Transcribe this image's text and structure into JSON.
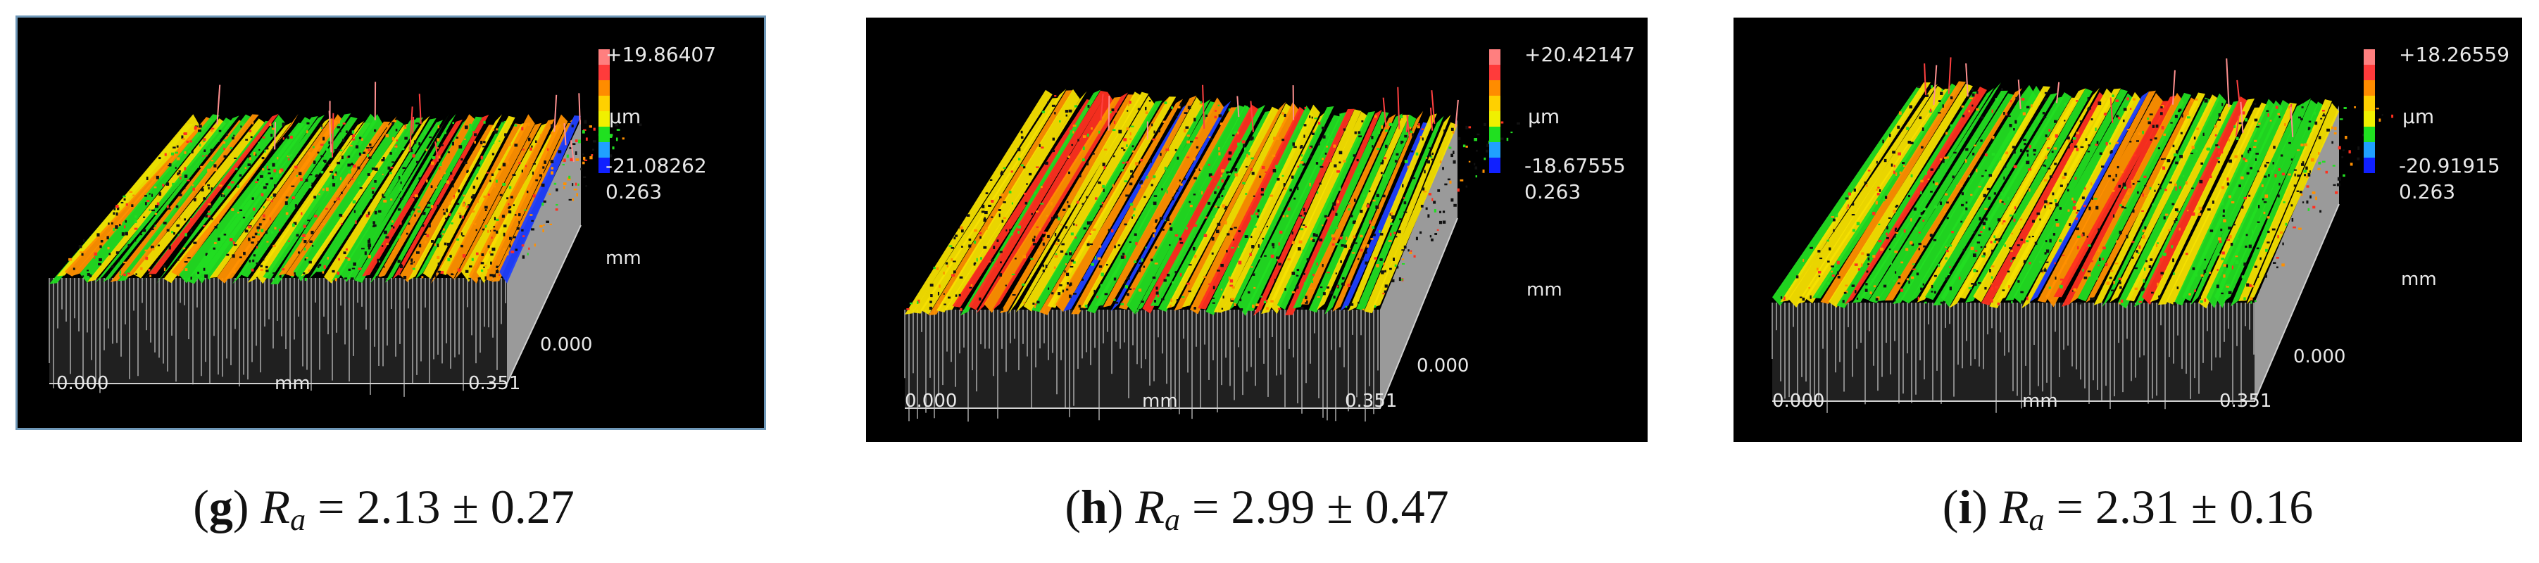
{
  "panels": [
    {
      "id": "g",
      "scale_max": "+19.86407",
      "scale_unit": "µm",
      "scale_min": "-21.08262",
      "scale_extra": "0.263",
      "y_axis_unit": "mm",
      "y_axis_start": "0.000",
      "x_axis_start": "0.000",
      "x_axis_unit": "mm",
      "x_axis_end": "0.351",
      "caption_label": "g",
      "caption_symbol": "R",
      "caption_subscript": "a",
      "caption_value": "= 2.13 ± 0.27"
    },
    {
      "id": "h",
      "scale_max": "+20.42147",
      "scale_unit": "µm",
      "scale_min": "-18.67555",
      "scale_extra": "0.263",
      "y_axis_unit": "mm",
      "y_axis_start": "0.000",
      "x_axis_start": "0.000",
      "x_axis_unit": "mm",
      "x_axis_end": "0.351",
      "caption_label": "h",
      "caption_symbol": "R",
      "caption_subscript": "a",
      "caption_value": "= 2.99 ± 0.47"
    },
    {
      "id": "i",
      "scale_max": "+18.26559",
      "scale_unit": "µm",
      "scale_min": "-20.91915",
      "scale_extra": "0.263",
      "y_axis_unit": "mm",
      "y_axis_start": "0.000",
      "x_axis_start": "0.000",
      "x_axis_unit": "mm",
      "x_axis_end": "0.351",
      "caption_label": "i",
      "caption_symbol": "R",
      "caption_subscript": "a",
      "caption_value": "= 2.31 ± 0.16"
    }
  ],
  "colors": {
    "colorbar": [
      "#ff7f7f",
      "#ff3b3b",
      "#ff8c00",
      "#ffd000",
      "#f0f000",
      "#20e020",
      "#20a0ff",
      "#1020ff"
    ],
    "surface": [
      "#22dd22",
      "#f5e000",
      "#ff9000",
      "#ff3020",
      "#2040ff"
    ],
    "base": "#9a9a9a",
    "text": "#e8e8e8"
  }
}
